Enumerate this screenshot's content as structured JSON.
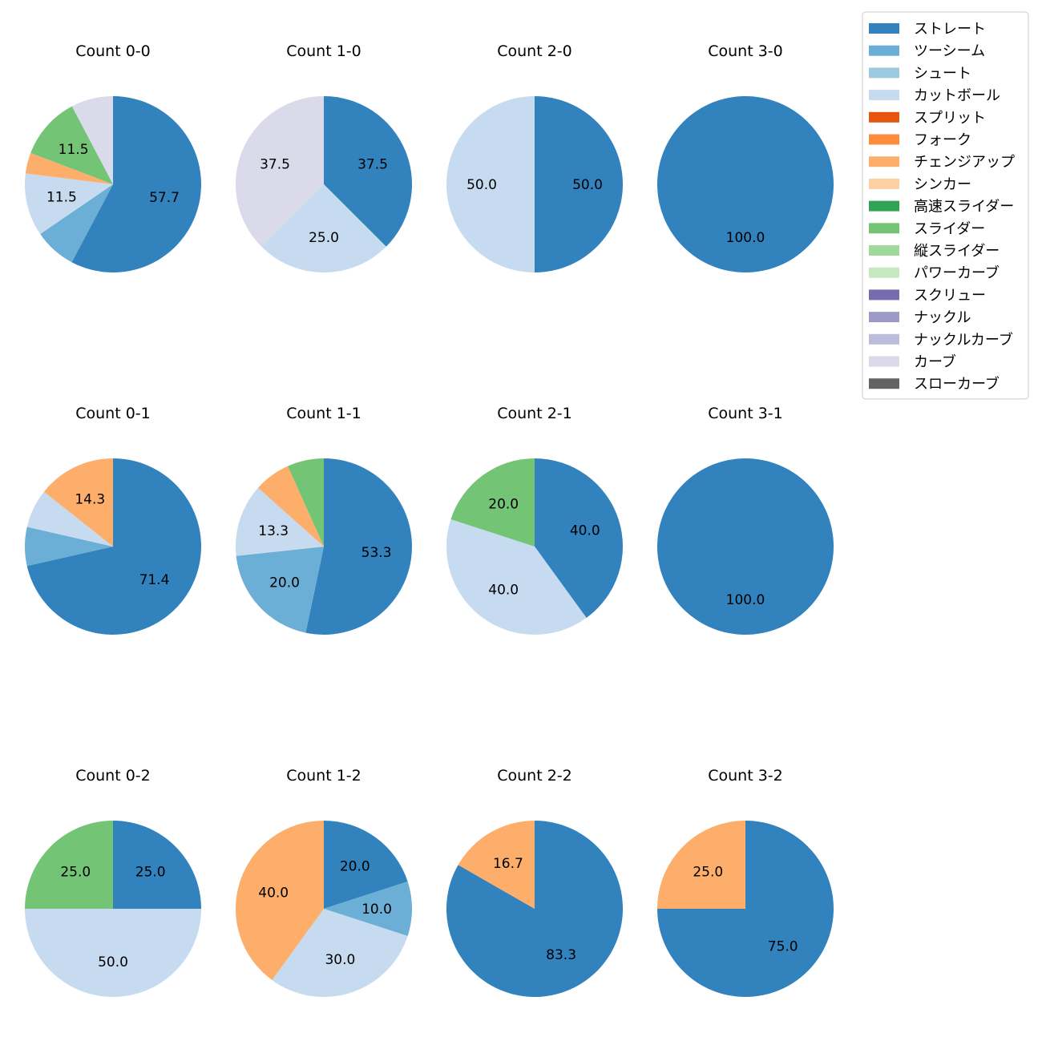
{
  "legend": [
    {
      "name": "ストレート",
      "color": "#3182bd"
    },
    {
      "name": "ツーシーム",
      "color": "#6baed6"
    },
    {
      "name": "シュート",
      "color": "#9ecae1"
    },
    {
      "name": "カットボール",
      "color": "#c6dbef"
    },
    {
      "name": "スプリット",
      "color": "#e6550d"
    },
    {
      "name": "フォーク",
      "color": "#fd8d3c"
    },
    {
      "name": "チェンジアップ",
      "color": "#fdae6b"
    },
    {
      "name": "シンカー",
      "color": "#fdd0a2"
    },
    {
      "name": "高速スライダー",
      "color": "#31a354"
    },
    {
      "name": "スライダー",
      "color": "#74c476"
    },
    {
      "name": "縦スライダー",
      "color": "#a1d99b"
    },
    {
      "name": "パワーカーブ",
      "color": "#c7e9c0"
    },
    {
      "name": "スクリュー",
      "color": "#756bb1"
    },
    {
      "name": "ナックル",
      "color": "#9e9ac8"
    },
    {
      "name": "ナックルカーブ",
      "color": "#bcbddc"
    },
    {
      "name": "カーブ",
      "color": "#dadaeb"
    },
    {
      "name": "スローカーブ",
      "color": "#636363"
    }
  ],
  "chart_data": [
    {
      "type": "pie",
      "title": "Count 0-0",
      "slices": [
        {
          "category": "ストレート",
          "value": 57.7,
          "label": "57.7"
        },
        {
          "category": "ツーシーム",
          "value": 7.7,
          "label": ""
        },
        {
          "category": "カットボール",
          "value": 11.5,
          "label": "11.5"
        },
        {
          "category": "チェンジアップ",
          "value": 3.8,
          "label": ""
        },
        {
          "category": "スライダー",
          "value": 11.5,
          "label": "11.5"
        },
        {
          "category": "カーブ",
          "value": 7.7,
          "label": ""
        }
      ]
    },
    {
      "type": "pie",
      "title": "Count 1-0",
      "slices": [
        {
          "category": "ストレート",
          "value": 37.5,
          "label": "37.5"
        },
        {
          "category": "カットボール",
          "value": 25.0,
          "label": "25.0"
        },
        {
          "category": "カーブ",
          "value": 37.5,
          "label": "37.5"
        }
      ]
    },
    {
      "type": "pie",
      "title": "Count 2-0",
      "slices": [
        {
          "category": "ストレート",
          "value": 50.0,
          "label": "50.0"
        },
        {
          "category": "カットボール",
          "value": 50.0,
          "label": "50.0"
        }
      ]
    },
    {
      "type": "pie",
      "title": "Count 3-0",
      "slices": [
        {
          "category": "ストレート",
          "value": 100.0,
          "label": "100.0"
        }
      ]
    },
    {
      "type": "pie",
      "title": "Count 0-1",
      "slices": [
        {
          "category": "ストレート",
          "value": 71.4,
          "label": "71.4"
        },
        {
          "category": "ツーシーム",
          "value": 7.1,
          "label": ""
        },
        {
          "category": "カットボール",
          "value": 7.1,
          "label": ""
        },
        {
          "category": "チェンジアップ",
          "value": 14.3,
          "label": "14.3"
        }
      ]
    },
    {
      "type": "pie",
      "title": "Count 1-1",
      "slices": [
        {
          "category": "ストレート",
          "value": 53.3,
          "label": "53.3"
        },
        {
          "category": "ツーシーム",
          "value": 20.0,
          "label": "20.0"
        },
        {
          "category": "カットボール",
          "value": 13.3,
          "label": "13.3"
        },
        {
          "category": "チェンジアップ",
          "value": 6.7,
          "label": ""
        },
        {
          "category": "スライダー",
          "value": 6.7,
          "label": ""
        }
      ]
    },
    {
      "type": "pie",
      "title": "Count 2-1",
      "slices": [
        {
          "category": "ストレート",
          "value": 40.0,
          "label": "40.0"
        },
        {
          "category": "カットボール",
          "value": 40.0,
          "label": "40.0"
        },
        {
          "category": "スライダー",
          "value": 20.0,
          "label": "20.0"
        }
      ]
    },
    {
      "type": "pie",
      "title": "Count 3-1",
      "slices": [
        {
          "category": "ストレート",
          "value": 100.0,
          "label": "100.0"
        }
      ]
    },
    {
      "type": "pie",
      "title": "Count 0-2",
      "slices": [
        {
          "category": "ストレート",
          "value": 25.0,
          "label": "25.0"
        },
        {
          "category": "カットボール",
          "value": 50.0,
          "label": "50.0"
        },
        {
          "category": "スライダー",
          "value": 25.0,
          "label": "25.0"
        }
      ]
    },
    {
      "type": "pie",
      "title": "Count 1-2",
      "slices": [
        {
          "category": "ストレート",
          "value": 20.0,
          "label": "20.0"
        },
        {
          "category": "ツーシーム",
          "value": 10.0,
          "label": "10.0"
        },
        {
          "category": "カットボール",
          "value": 30.0,
          "label": "30.0"
        },
        {
          "category": "チェンジアップ",
          "value": 40.0,
          "label": "40.0"
        }
      ]
    },
    {
      "type": "pie",
      "title": "Count 2-2",
      "slices": [
        {
          "category": "ストレート",
          "value": 83.3,
          "label": "83.3"
        },
        {
          "category": "チェンジアップ",
          "value": 16.7,
          "label": "16.7"
        }
      ]
    },
    {
      "type": "pie",
      "title": "Count 3-2",
      "slices": [
        {
          "category": "ストレート",
          "value": 75.0,
          "label": "75.0"
        },
        {
          "category": "チェンジアップ",
          "value": 25.0,
          "label": "25.0"
        }
      ]
    }
  ]
}
